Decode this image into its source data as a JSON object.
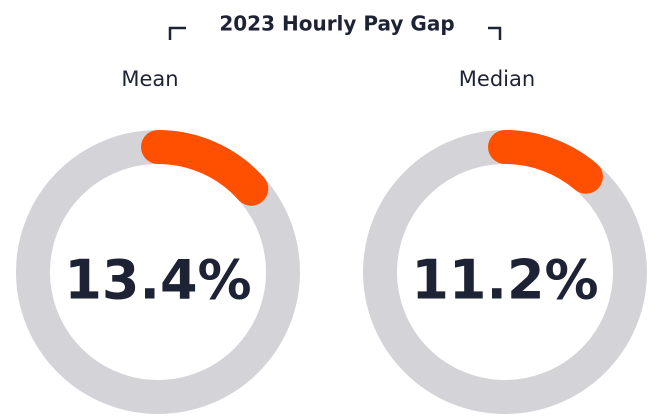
{
  "title": "2023 Hourly Pay Gap",
  "chart_data": [
    {
      "type": "donut",
      "title": "Mean",
      "values": [
        13.4
      ],
      "value_labels": [
        "13.4%"
      ],
      "color": "#ff4f00",
      "track_color": "#d4d4d8"
    },
    {
      "type": "donut",
      "title": "Median",
      "values": [
        11.2
      ],
      "value_labels": [
        "11.2%"
      ],
      "color": "#ff4f00",
      "track_color": "#d4d4d8"
    }
  ]
}
